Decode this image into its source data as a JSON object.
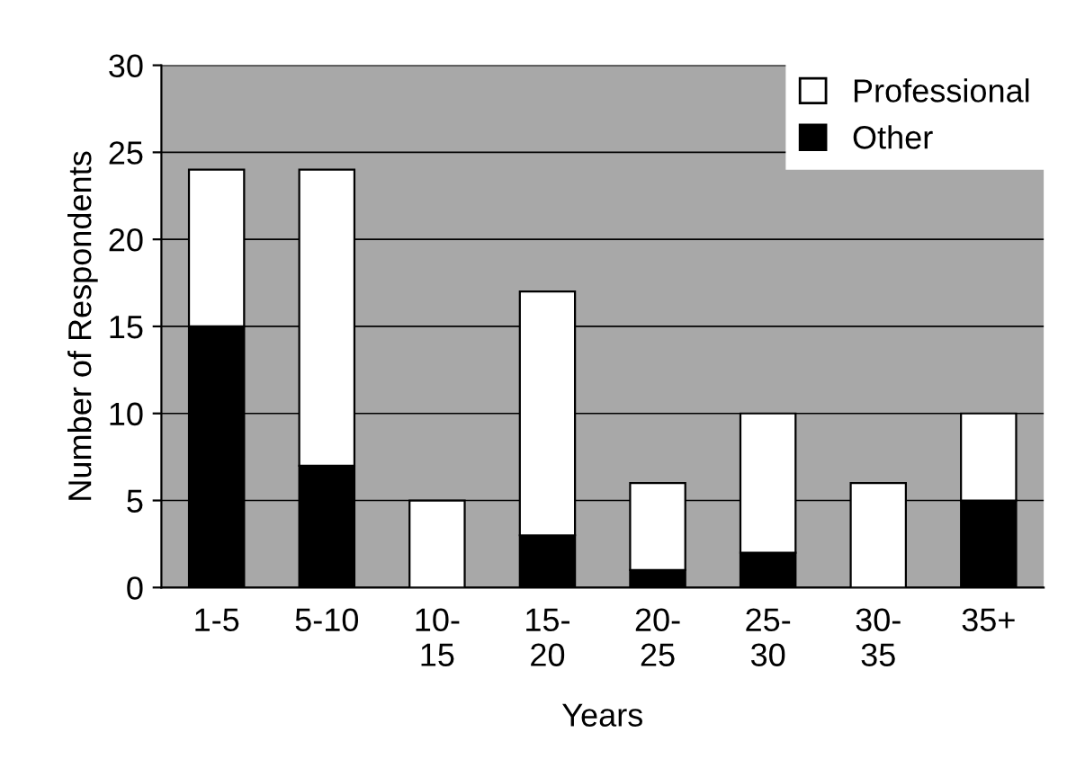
{
  "chart_data": {
    "type": "bar",
    "stacked": true,
    "xlabel": "Years",
    "ylabel": "Number of Respondents",
    "categories": [
      "1-5",
      "5-10",
      "10-\n15",
      "15-\n20",
      "20-\n25",
      "25-\n30",
      "30-\n35",
      "35+"
    ],
    "series": [
      {
        "name": "Other",
        "color": "#000000",
        "values": [
          15,
          7,
          0,
          3,
          1,
          2,
          0,
          5
        ]
      },
      {
        "name": "Professional",
        "color": "#ffffff",
        "values": [
          9,
          17,
          5,
          14,
          5,
          8,
          6,
          5
        ]
      }
    ],
    "ylim": [
      0,
      30
    ],
    "yticks": [
      0,
      5,
      10,
      15,
      20,
      25,
      30
    ],
    "grid": "y",
    "legend": "top right"
  }
}
